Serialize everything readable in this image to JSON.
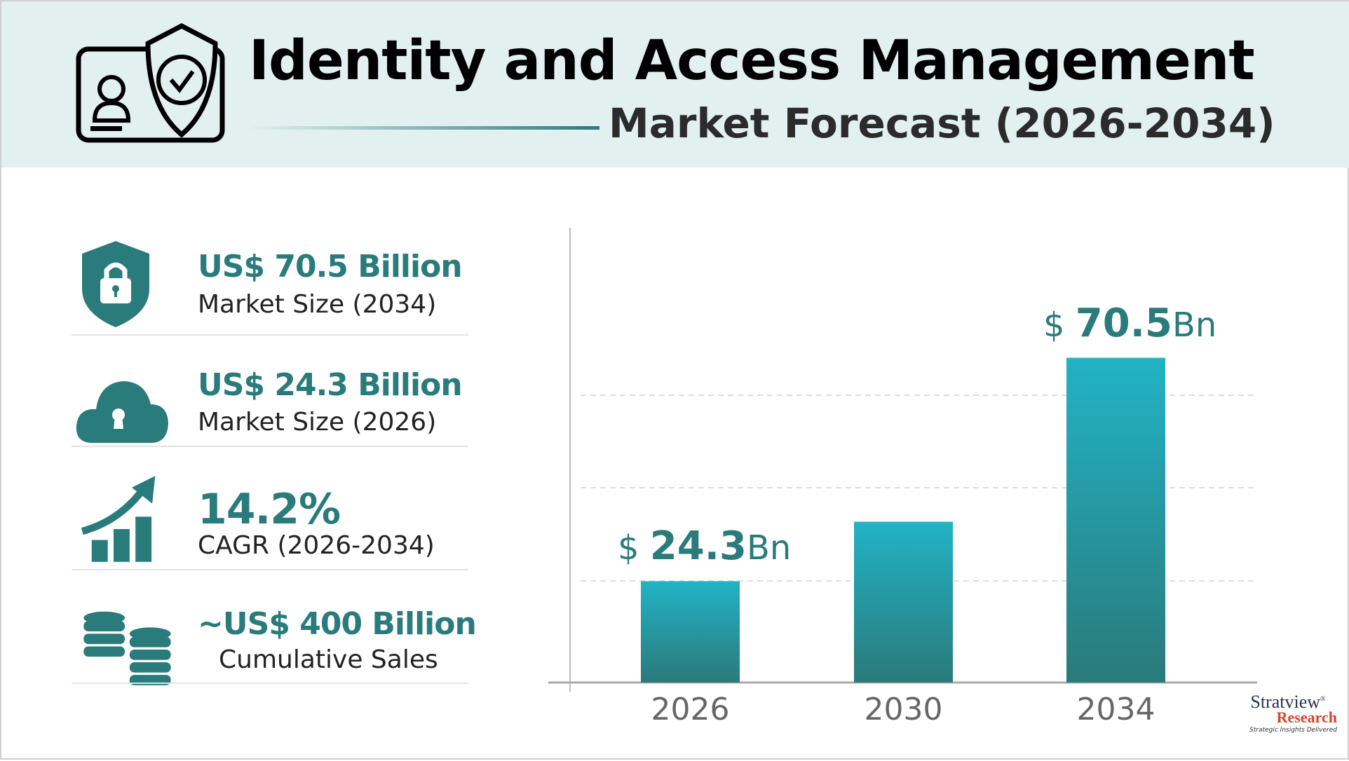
{
  "header": {
    "title": "Identity and Access Management",
    "subtitle": "Market Forecast (2026-2034)"
  },
  "stats": [
    {
      "icon": "shield-lock-icon",
      "value": "US$ 70.5 Billion",
      "label": "Market Size (2034)"
    },
    {
      "icon": "cloud-lock-icon",
      "value": "US$ 24.3 Billion",
      "label": "Market Size (2026)"
    },
    {
      "icon": "growth-chart-icon",
      "value": "14.2%",
      "label": "CAGR (2026-2034)"
    },
    {
      "icon": "coin-stacks-icon",
      "value": "~US$ 400 Billion",
      "label": "Cumulative Sales"
    }
  ],
  "chart_data": {
    "type": "bar",
    "categories": [
      "2026",
      "2030",
      "2034"
    ],
    "values": [
      24.3,
      36.6,
      70.5
    ],
    "data_labels": [
      {
        "prefix": "$ ",
        "value": "24.3",
        "suffix": "Bn"
      },
      null,
      {
        "prefix": "$ ",
        "value": "70.5",
        "suffix": "Bn"
      }
    ],
    "grid": "horizontal dashed",
    "colors": {
      "bar_top": "#22b3c5",
      "bar_bottom": "#2a7a7a",
      "accent": "#2a7b7b"
    }
  },
  "logo": {
    "name": "Stratview",
    "sub": "Research",
    "tagline": "Strategic Insights Delivered"
  }
}
